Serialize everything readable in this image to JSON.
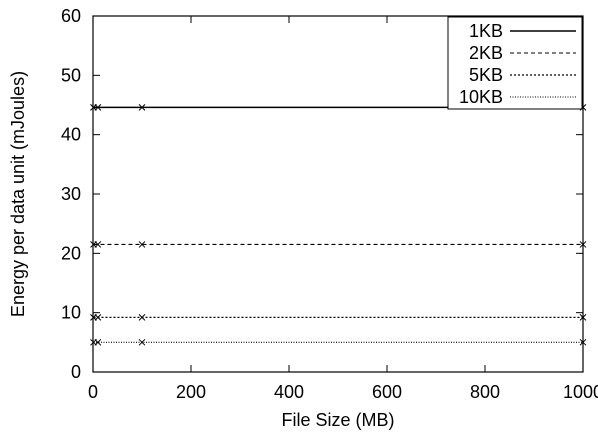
{
  "chart_data": {
    "type": "line",
    "title": "",
    "xlabel": "File Size (MB)",
    "ylabel": "Energy per data unit (mJoules)",
    "xlim": [
      0,
      1000
    ],
    "ylim": [
      0,
      60
    ],
    "xticks": [
      0,
      200,
      400,
      600,
      800,
      1000
    ],
    "yticks": [
      0,
      10,
      20,
      30,
      40,
      50,
      60
    ],
    "grid": false,
    "legend_position": "top-right",
    "x": [
      1,
      10,
      100,
      1000
    ],
    "series": [
      {
        "name": "1KB",
        "values": [
          44.6,
          44.6,
          44.6,
          44.6
        ],
        "dash": "solid"
      },
      {
        "name": "2KB",
        "values": [
          21.5,
          21.5,
          21.5,
          21.5
        ],
        "dash": "dashed"
      },
      {
        "name": "5KB",
        "values": [
          9.2,
          9.2,
          9.2,
          9.2
        ],
        "dash": "dotted"
      },
      {
        "name": "10KB",
        "values": [
          5.0,
          5.0,
          5.0,
          5.0
        ],
        "dash": "fine-dotted"
      }
    ]
  }
}
